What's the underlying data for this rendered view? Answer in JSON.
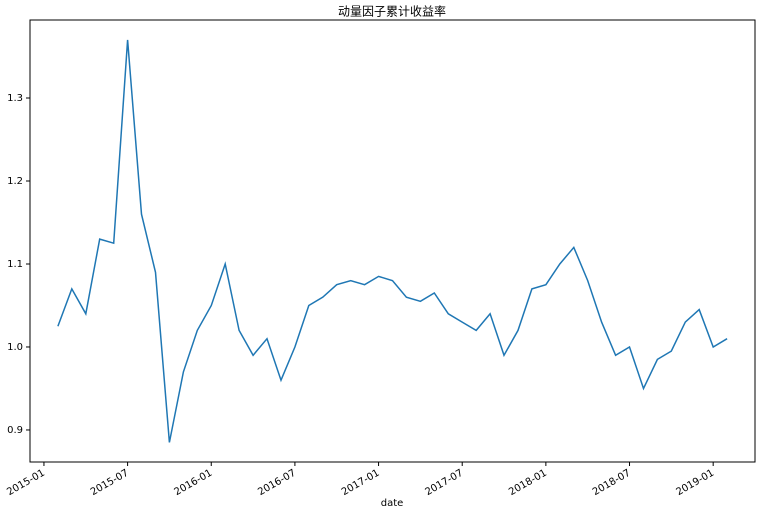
{
  "chart_data": {
    "type": "line",
    "title": "动量因子累计收益率",
    "x_label": "date",
    "x": [
      "2015-02",
      "2015-03",
      "2015-04",
      "2015-05",
      "2015-06",
      "2015-07",
      "2015-08",
      "2015-09",
      "2015-10",
      "2015-11",
      "2015-12",
      "2016-01",
      "2016-02",
      "2016-03",
      "2016-04",
      "2016-05",
      "2016-06",
      "2016-07",
      "2016-08",
      "2016-09",
      "2016-10",
      "2016-11",
      "2016-12",
      "2017-01",
      "2017-02",
      "2017-03",
      "2017-04",
      "2017-05",
      "2017-06",
      "2017-07",
      "2017-08",
      "2017-09",
      "2017-10",
      "2017-11",
      "2017-12",
      "2018-01",
      "2018-02",
      "2018-03",
      "2018-04",
      "2018-05",
      "2018-06",
      "2018-07",
      "2018-08",
      "2018-09",
      "2018-10",
      "2018-11",
      "2018-12",
      "2019-01",
      "2019-02"
    ],
    "values": [
      1.025,
      1.07,
      1.04,
      1.13,
      1.125,
      1.37,
      1.16,
      1.09,
      0.885,
      0.97,
      1.02,
      1.05,
      1.1,
      1.02,
      0.99,
      1.01,
      0.96,
      1.0,
      1.05,
      1.06,
      1.075,
      1.08,
      1.075,
      1.085,
      1.08,
      1.06,
      1.055,
      1.065,
      1.04,
      1.03,
      1.02,
      1.04,
      0.99,
      1.02,
      1.07,
      1.075,
      1.1,
      1.12,
      1.08,
      1.03,
      0.99,
      1.0,
      0.95,
      0.985,
      0.995,
      1.03,
      1.045,
      1.0,
      1.01
    ],
    "color": "#1f77b4",
    "xlim": [
      "2014-12",
      "2019-04"
    ],
    "xticks": [
      "2015-01",
      "2015-07",
      "2016-01",
      "2016-07",
      "2017-01",
      "2017-07",
      "2018-01",
      "2018-07",
      "2019-01"
    ],
    "ylim": [
      0.8614,
      1.394
    ],
    "yticks": [
      0.9,
      {
        "value": 1,
        "label": "1.0"
      },
      1.1,
      1.2,
      1.3
    ]
  }
}
